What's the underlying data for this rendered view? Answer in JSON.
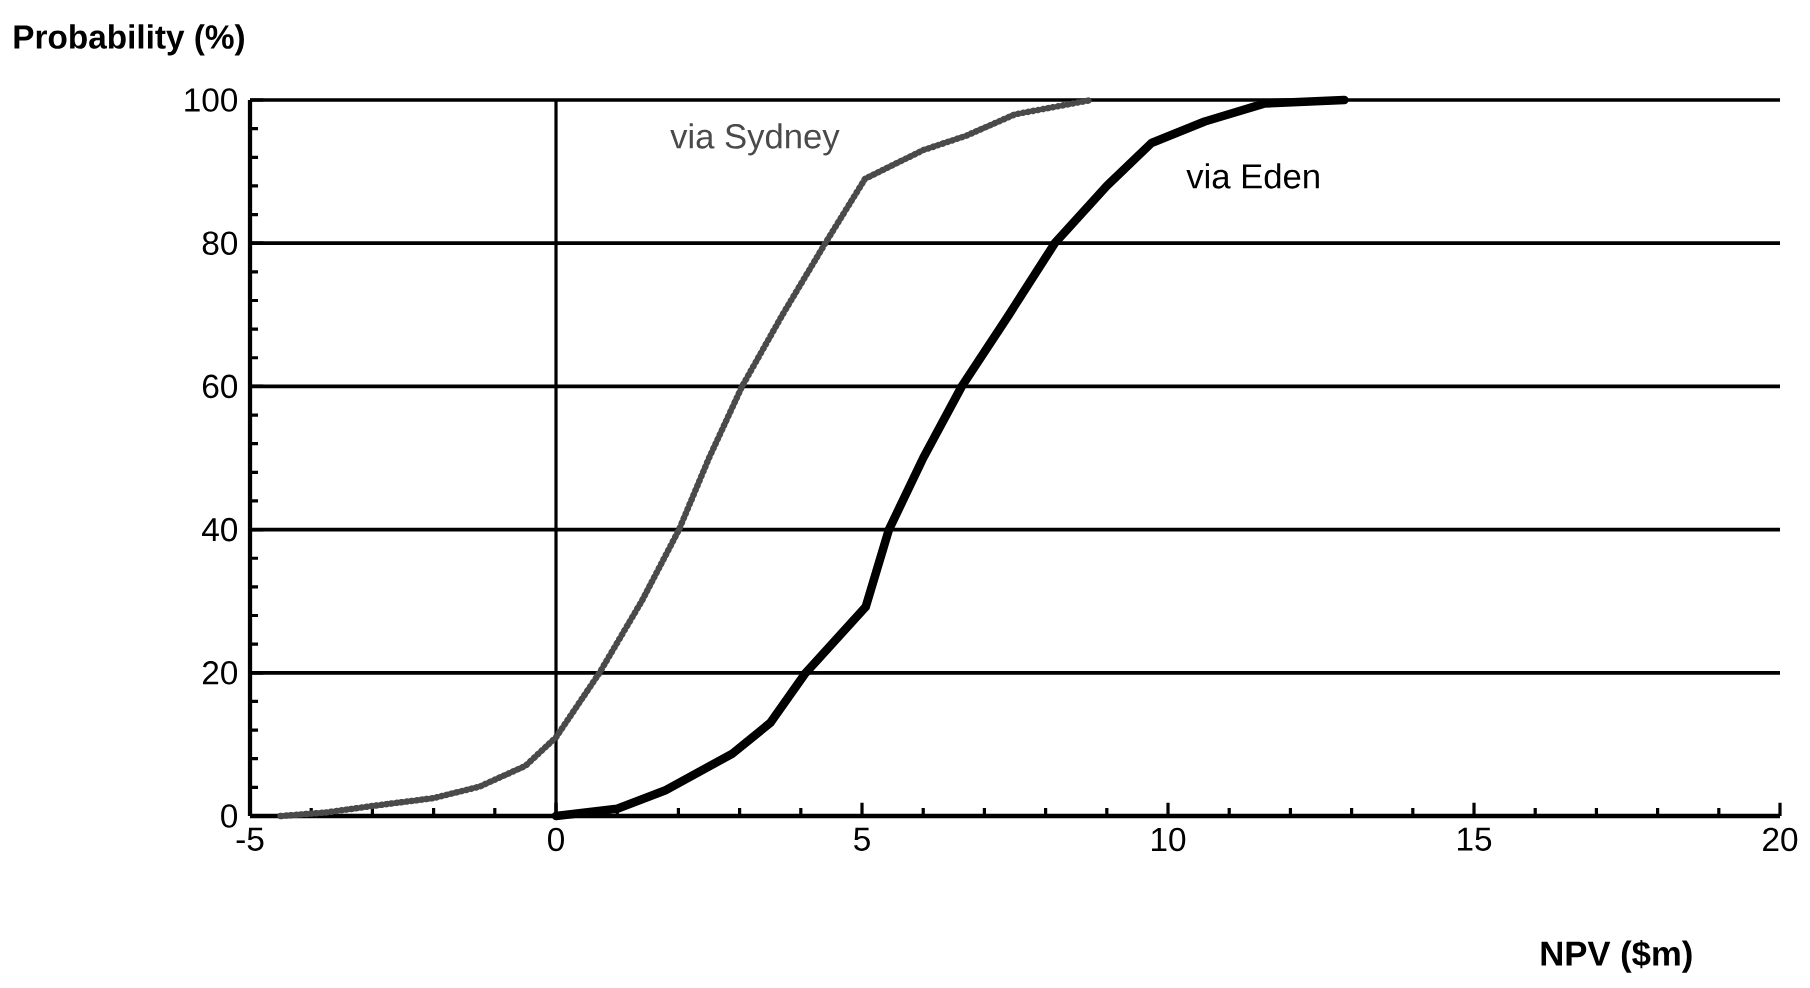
{
  "chart_data": {
    "type": "line",
    "xlabel": "NPV  ($m)",
    "ylabel": "Probability  (%)",
    "xlim": [
      -5,
      20
    ],
    "ylim": [
      0,
      100
    ],
    "xticks": [
      -5,
      0,
      5,
      10,
      15,
      20
    ],
    "yticks": [
      0,
      20,
      40,
      60,
      80,
      100
    ],
    "grid": "y",
    "ref_lines": [
      {
        "axis": "x",
        "value": 0
      }
    ],
    "series": [
      {
        "name": "via Sydney",
        "color": "#4a4a4a",
        "line_style": "dotted",
        "x": [
          -4.5,
          -3.75,
          -3,
          -2,
          -1.25,
          -0.5,
          0,
          0.71,
          1.4,
          2.01,
          2.5,
          3.04,
          3.7,
          4.4,
          5.05,
          6,
          6.7,
          7.5,
          8.75
        ],
        "values": [
          0,
          0.5,
          1.4,
          2.5,
          4.1,
          7,
          11,
          20,
          30,
          40,
          50,
          60,
          70,
          80,
          89,
          93,
          95,
          98,
          100
        ]
      },
      {
        "name": "via Eden",
        "color": "#000000",
        "line_style": "solid",
        "x": [
          0,
          1,
          1.79,
          2.88,
          3.5,
          4.08,
          5.06,
          5.44,
          6.0,
          6.63,
          7.4,
          8.15,
          9,
          9.73,
          10.6,
          11.57,
          12.88
        ],
        "values": [
          0,
          1,
          3.6,
          8.7,
          13,
          20,
          29.2,
          40,
          50,
          60,
          70,
          80,
          88,
          94,
          97,
          99.5,
          100
        ]
      }
    ]
  }
}
